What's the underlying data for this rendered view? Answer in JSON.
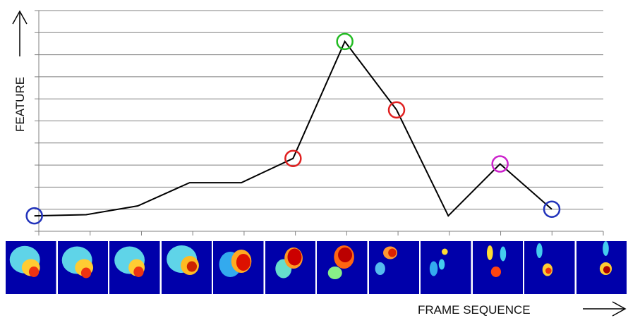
{
  "chart_data": {
    "type": "line",
    "xlabel": "FRAME SEQUENCE",
    "ylabel": "FEATURE",
    "ylim": [
      0,
      10
    ],
    "grid": true,
    "x": [
      1,
      2,
      3,
      4,
      5,
      6,
      7,
      8,
      9,
      10,
      11,
      12
    ],
    "values": [
      0.7,
      0.75,
      1.15,
      2.2,
      2.2,
      3.3,
      8.6,
      5.5,
      0.7,
      3.05,
      1.0,
      null
    ],
    "x_positions_note_free": true,
    "markers": [
      {
        "x": 1,
        "y": 0.7,
        "color": "#2233bb"
      },
      {
        "x": 6,
        "y": 3.3,
        "color": "#e02020"
      },
      {
        "x": 7,
        "y": 8.6,
        "color": "#22bb22"
      },
      {
        "x": 8,
        "y": 5.5,
        "color": "#e02020"
      },
      {
        "x": 10,
        "y": 3.05,
        "color": "#cc22cc"
      },
      {
        "x": 11,
        "y": 1.0,
        "color": "#2233bb"
      }
    ],
    "colors": {
      "line": "#000000",
      "grid": "#808080",
      "frame_bg": "#0000aa"
    }
  },
  "frames": [
    {
      "icon": "heatmap-frame-1"
    },
    {
      "icon": "heatmap-frame-2"
    },
    {
      "icon": "heatmap-frame-3"
    },
    {
      "icon": "heatmap-frame-4"
    },
    {
      "icon": "heatmap-frame-5"
    },
    {
      "icon": "heatmap-frame-6"
    },
    {
      "icon": "heatmap-frame-7"
    },
    {
      "icon": "heatmap-frame-8"
    },
    {
      "icon": "heatmap-frame-9"
    },
    {
      "icon": "heatmap-frame-10"
    },
    {
      "icon": "heatmap-frame-11"
    },
    {
      "icon": "heatmap-frame-12"
    }
  ]
}
